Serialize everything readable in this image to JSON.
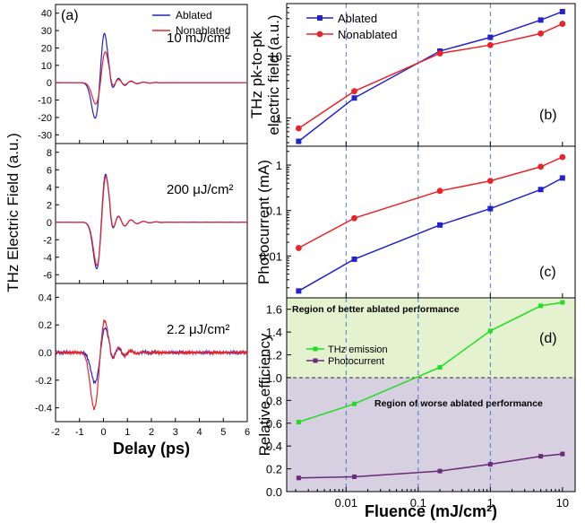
{
  "left": {
    "ylabel": "THz Electric Field (a.u.)",
    "xlabel": "Delay (ps)",
    "xlim": [
      -2,
      6
    ],
    "xticks": [
      "-2",
      "-1",
      "0",
      "1",
      "2",
      "3",
      "4",
      "5",
      "6"
    ]
  },
  "right": {
    "xlabel": "Fluence (mJ/cm²)",
    "xticks": [
      "0.01",
      "0.1",
      "1",
      "10"
    ]
  },
  "colors": {
    "ablated": "#2323c8",
    "nonablated": "#e8232a",
    "thz": "#22dd22",
    "photo": "#6b2a7a"
  },
  "chart_data": [
    {
      "id": "a",
      "panel_label": "(a)",
      "type": "line",
      "annotation": "10 mJ/cm²",
      "legend": [
        "Ablated",
        "Nonablated"
      ],
      "xlim": [
        -2,
        6
      ],
      "ylim": [
        -35,
        45
      ],
      "yticks": [
        "-30",
        "-20",
        "-10",
        "0",
        "10",
        "20",
        "30",
        "40"
      ],
      "series": [
        {
          "name": "Ablated",
          "pulse": {
            "amp_pos": 31,
            "amp_neg": -22,
            "neg_t": -0.32,
            "pos_t": 0.02,
            "ring_amp": 5.0
          }
        },
        {
          "name": "Nonablated",
          "pulse": {
            "amp_pos": 19,
            "amp_neg": -13,
            "neg_t": -0.3,
            "pos_t": 0.06,
            "ring_amp": 3.6
          }
        }
      ]
    },
    {
      "id": "a2",
      "type": "line",
      "annotation": "200 μJ/cm²",
      "xlim": [
        -2,
        6
      ],
      "ylim": [
        -7,
        9
      ],
      "yticks": [
        "-6",
        "-4",
        "-2",
        "0",
        "2",
        "4",
        "6",
        "8"
      ],
      "series": [
        {
          "name": "Ablated",
          "pulse": {
            "amp_pos": 6.4,
            "amp_neg": -5.8,
            "neg_t": -0.25,
            "pos_t": 0.06,
            "ring_amp": 1.4
          }
        },
        {
          "name": "Nonablated",
          "pulse": {
            "amp_pos": 6.1,
            "amp_neg": -5.4,
            "neg_t": -0.24,
            "pos_t": 0.07,
            "ring_amp": 1.3
          }
        }
      ]
    },
    {
      "id": "a3",
      "type": "line",
      "annotation": "2.2 μJ/cm²",
      "xlim": [
        -2,
        6
      ],
      "ylim": [
        -0.5,
        0.5
      ],
      "yticks": [
        "-0.4",
        "-0.2",
        "0.0",
        "0.2",
        "0.4"
      ],
      "series": [
        {
          "name": "Ablated",
          "pulse": {
            "amp_pos": 0.19,
            "amp_neg": -0.22,
            "neg_t": -0.35,
            "pos_t": 0.05,
            "ring_amp": 0.06
          }
        },
        {
          "name": "Nonablated",
          "pulse": {
            "amp_pos": 0.25,
            "amp_neg": -0.41,
            "neg_t": -0.38,
            "pos_t": 0.03,
            "ring_amp": 0.07
          }
        }
      ]
    },
    {
      "id": "b",
      "panel_label": "(b)",
      "type": "line",
      "ylabel": "THz pk-to-pk electric field (a.u.)",
      "ylabel_lines": [
        "THz pk-to-pk",
        "electric field (a.u.)"
      ],
      "ylog": true,
      "ylim": [
        0.35,
        70
      ],
      "xlog": true,
      "xlim": [
        0.0015,
        15
      ],
      "yticks": [
        "1",
        "10"
      ],
      "ytick_values": [
        1,
        10
      ],
      "legend": [
        "Ablated",
        "Nonablated"
      ],
      "x": [
        0.0022,
        0.013,
        0.2,
        1,
        5,
        10
      ],
      "series": [
        {
          "name": "Ablated",
          "values": [
            0.42,
            2.1,
            12,
            20,
            38,
            52
          ]
        },
        {
          "name": "Nonablated",
          "values": [
            0.68,
            2.7,
            11,
            15,
            23,
            33
          ]
        }
      ]
    },
    {
      "id": "c",
      "panel_label": "(c)",
      "type": "line",
      "ylabel": "Photocurrent (mA)",
      "ylog": true,
      "ylim": [
        0.0012,
        2.6
      ],
      "xlog": true,
      "xlim": [
        0.0015,
        15
      ],
      "yticks": [
        "0.01",
        "0.1",
        "1"
      ],
      "ytick_values": [
        0.01,
        0.1,
        1
      ],
      "x": [
        0.0022,
        0.013,
        0.2,
        1,
        5,
        10
      ],
      "series": [
        {
          "name": "Ablated",
          "values": [
            0.0017,
            0.0085,
            0.048,
            0.11,
            0.29,
            0.52
          ]
        },
        {
          "name": "Nonablated",
          "values": [
            0.015,
            0.068,
            0.27,
            0.45,
            0.92,
            1.5
          ]
        }
      ]
    },
    {
      "id": "d",
      "panel_label": "(d)",
      "type": "line",
      "ylabel": "Relative efficiency",
      "ylim": [
        0,
        1.7
      ],
      "xlog": true,
      "xlim": [
        0.0015,
        15
      ],
      "yticks": [
        "0.0",
        "0.2",
        "0.4",
        "0.6",
        "0.8",
        "1.0",
        "1.2",
        "1.4",
        "1.6"
      ],
      "ytick_values": [
        0,
        0.2,
        0.4,
        0.6,
        0.8,
        1.0,
        1.2,
        1.4,
        1.6
      ],
      "legend": [
        "THz emission",
        "Photocurrent"
      ],
      "x": [
        0.0022,
        0.013,
        0.2,
        1,
        5,
        10
      ],
      "series": [
        {
          "name": "THz emission",
          "values": [
            0.61,
            0.77,
            1.09,
            1.41,
            1.63,
            1.66
          ]
        },
        {
          "name": "Photocurrent",
          "values": [
            0.12,
            0.13,
            0.18,
            0.24,
            0.31,
            0.33
          ]
        }
      ],
      "reference_line": 1.0,
      "regions": [
        "Region of better ablated performance",
        "Region of worse ablated performance"
      ]
    }
  ]
}
